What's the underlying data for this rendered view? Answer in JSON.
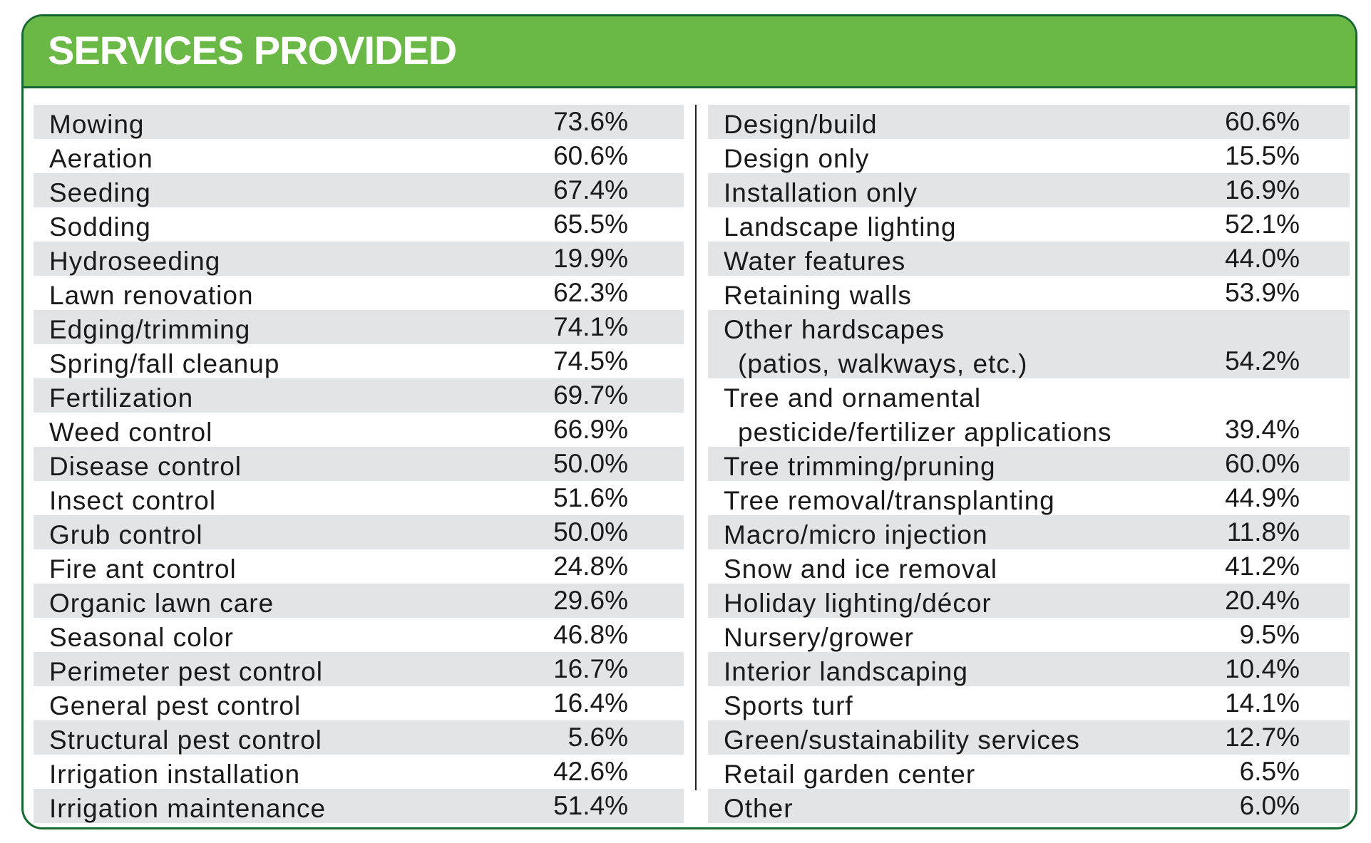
{
  "title": "SERVICES PROVIDED",
  "colors": {
    "header_green": "#6ab845",
    "border_green": "#15692e",
    "row_shade": "#e3e4e6"
  },
  "left_column": [
    {
      "label": "Mowing",
      "value": "73.6%"
    },
    {
      "label": "Aeration",
      "value": "60.6%"
    },
    {
      "label": "Seeding",
      "value": "67.4%"
    },
    {
      "label": "Sodding",
      "value": "65.5%"
    },
    {
      "label": "Hydroseeding",
      "value": "19.9%"
    },
    {
      "label": "Lawn renovation",
      "value": "62.3%"
    },
    {
      "label": "Edging/trimming",
      "value": "74.1%"
    },
    {
      "label": "Spring/fall cleanup",
      "value": "74.5%"
    },
    {
      "label": "Fertilization",
      "value": "69.7%"
    },
    {
      "label": "Weed control",
      "value": "66.9%"
    },
    {
      "label": "Disease control",
      "value": "50.0%"
    },
    {
      "label": "Insect control",
      "value": "51.6%"
    },
    {
      "label": "Grub control",
      "value": "50.0%"
    },
    {
      "label": "Fire ant control",
      "value": "24.8%"
    },
    {
      "label": "Organic lawn care",
      "value": "29.6%"
    },
    {
      "label": "Seasonal color",
      "value": "46.8%"
    },
    {
      "label": "Perimeter pest control",
      "value": "16.7%"
    },
    {
      "label": "General pest control",
      "value": "16.4%"
    },
    {
      "label": "Structural pest control",
      "value": "5.6%"
    },
    {
      "label": "Irrigation installation",
      "value": "42.6%"
    },
    {
      "label": "Irrigation maintenance",
      "value": "51.4%"
    }
  ],
  "right_column": [
    {
      "label": "Design/build",
      "value": "60.6%"
    },
    {
      "label": "Design only",
      "value": "15.5%"
    },
    {
      "label": "Installation only",
      "value": "16.9%"
    },
    {
      "label": "Landscape lighting",
      "value": "52.1%"
    },
    {
      "label": "Water features",
      "value": "44.0%"
    },
    {
      "label": "Retaining walls",
      "value": "53.9%"
    },
    {
      "label": "Other hardscapes",
      "label2": "(patios, walkways, etc.)",
      "value": "54.2%"
    },
    {
      "label": "Tree and ornamental",
      "label2": "pesticide/fertilizer applications",
      "value": "39.4%"
    },
    {
      "label": "Tree trimming/pruning",
      "value": "60.0%"
    },
    {
      "label": "Tree removal/transplanting",
      "value": "44.9%"
    },
    {
      "label": "Macro/micro injection",
      "value": "11.8%"
    },
    {
      "label": "Snow and ice removal",
      "value": "41.2%"
    },
    {
      "label": "Holiday lighting/décor",
      "value": "20.4%"
    },
    {
      "label": "Nursery/grower",
      "value": "9.5%"
    },
    {
      "label": "Interior landscaping",
      "value": "10.4%"
    },
    {
      "label": "Sports turf",
      "value": "14.1%"
    },
    {
      "label": "Green/sustainability services",
      "value": "12.7%"
    },
    {
      "label": "Retail garden center",
      "value": "6.5%"
    },
    {
      "label": "Other",
      "value": "6.0%"
    }
  ]
}
